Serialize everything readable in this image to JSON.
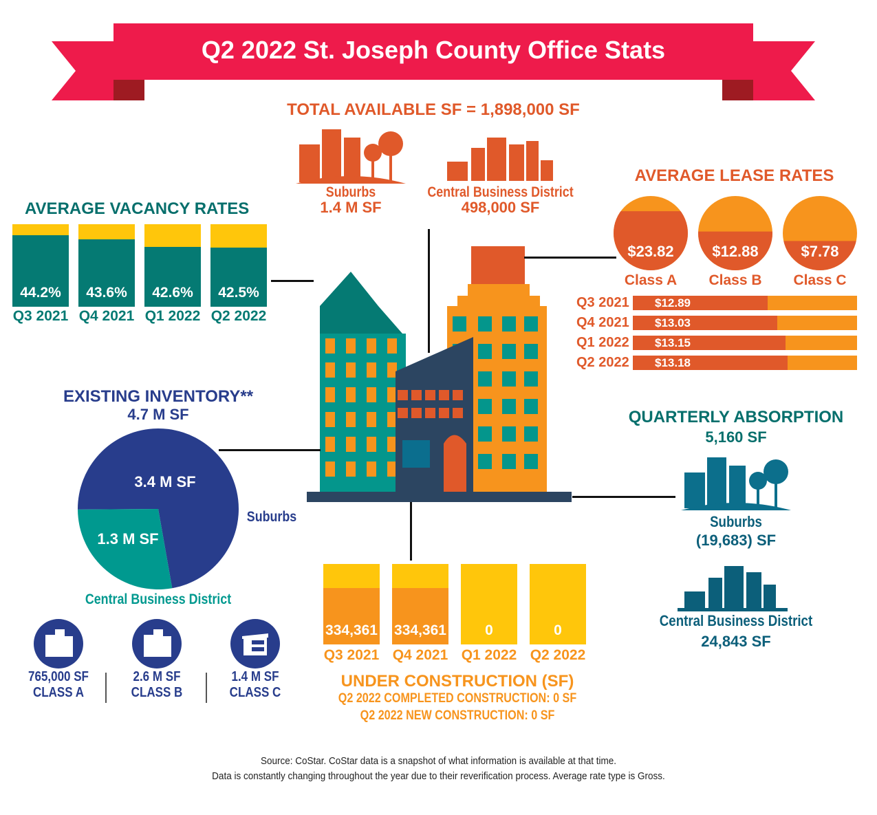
{
  "title": "Q2 2022 St. Joseph County Office Stats",
  "total_available": {
    "heading": "TOTAL AVAILABLE SF = 1,898,000 SF",
    "suburbs_label": "Suburbs",
    "suburbs_value": "1.4 M SF",
    "cbd_label": "Central Business District",
    "cbd_value": "498,000 SF"
  },
  "colors": {
    "red": "#EE1B4B",
    "teal": "#057A73",
    "navy": "#273F8F",
    "orange": "#E0592A",
    "light_orange": "#F7941D",
    "yellow": "#FFC60B"
  },
  "chart_data": [
    {
      "type": "bar",
      "id": "vacancy",
      "title": "AVERAGE VACANCY RATES",
      "categories": [
        "Q3 2021",
        "Q4 2021",
        "Q1 2022",
        "Q2 2022"
      ],
      "values": [
        44.2,
        43.6,
        42.6,
        42.5
      ],
      "labels": [
        "44.2%",
        "43.6%",
        "42.6%",
        "42.5%"
      ],
      "unit": "%"
    },
    {
      "type": "bar",
      "id": "lease_class",
      "title": "AVERAGE LEASE RATES",
      "categories": [
        "Class A",
        "Class B",
        "Class C"
      ],
      "values": [
        23.82,
        12.88,
        7.78
      ],
      "labels": [
        "$23.82",
        "$12.88",
        "$7.78"
      ]
    },
    {
      "type": "bar",
      "id": "lease_quarterly",
      "orientation": "horizontal",
      "categories": [
        "Q3 2021",
        "Q4 2021",
        "Q1 2022",
        "Q2 2022"
      ],
      "values": [
        12.89,
        13.03,
        13.15,
        13.18
      ],
      "labels": [
        "$12.89",
        "$13.03",
        "$13.15",
        "$13.18"
      ]
    },
    {
      "type": "pie",
      "id": "inventory",
      "title": "EXISTING INVENTORY**",
      "subtitle": "4.7 M SF",
      "slices": [
        {
          "name": "Suburbs",
          "value": 3.4,
          "label": "3.4 M SF"
        },
        {
          "name": "Central Business District",
          "value": 1.3,
          "label": "1.3 M SF"
        }
      ]
    },
    {
      "type": "bar",
      "id": "construction",
      "title": "UNDER CONSTRUCTION (SF)",
      "categories": [
        "Q3 2021",
        "Q4 2021",
        "Q1 2022",
        "Q2 2022"
      ],
      "values": [
        334361,
        334361,
        0,
        0
      ],
      "labels": [
        "334,361",
        "334,361",
        "0",
        "0"
      ]
    }
  ],
  "construction_notes": [
    "Q2 2022 COMPLETED CONSTRUCTION: 0 SF",
    "Q2 2022 NEW CONSTRUCTION: 0 SF"
  ],
  "inventory_classes": [
    {
      "value": "765,000 SF",
      "label": "CLASS A"
    },
    {
      "value": "2.6 M SF",
      "label": "CLASS B"
    },
    {
      "value": "1.4 M SF",
      "label": "CLASS C"
    }
  ],
  "absorption": {
    "heading": "QUARTERLY ABSORPTION",
    "total": "5,160 SF",
    "suburbs_label": "Suburbs",
    "suburbs_value": "(19,683) SF",
    "cbd_label": "Central Business District",
    "cbd_value": "24,843 SF"
  },
  "source": [
    "Source: CoStar. CoStar data is a snapshot of what information is available at that time.",
    "Data is constantly changing throughout the year due to their reverification process. Average rate type is Gross."
  ]
}
